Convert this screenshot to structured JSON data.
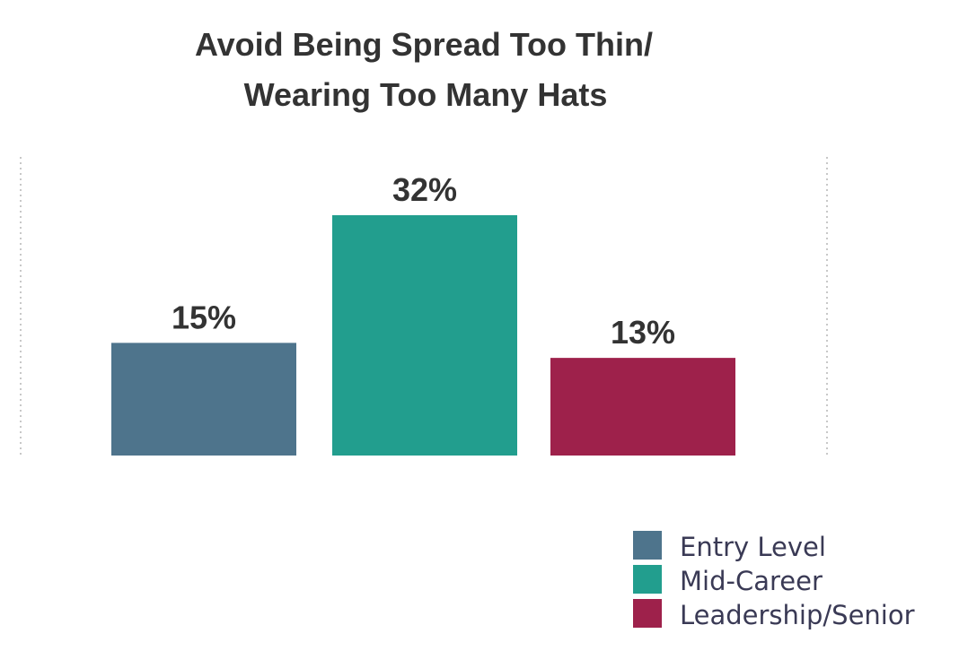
{
  "chart_data": {
    "type": "bar",
    "title": [
      "Avoid Being Spread Too Thin/",
      "Wearing Too Many Hats"
    ],
    "categories": [
      "Entry Level",
      "Mid-Career",
      "Leadership/Senior"
    ],
    "values": [
      15,
      32,
      13
    ],
    "data_labels": [
      "15%",
      "32%",
      "13%"
    ],
    "colors": [
      "#4e748c",
      "#229e8e",
      "#9e214b"
    ],
    "xlabel": "",
    "ylabel": "",
    "ylim": [
      0,
      32
    ],
    "grid": false,
    "legend": {
      "position": "bottom-right",
      "entries": [
        "Entry Level",
        "Mid-Career",
        "Leadership/Senior"
      ]
    }
  }
}
